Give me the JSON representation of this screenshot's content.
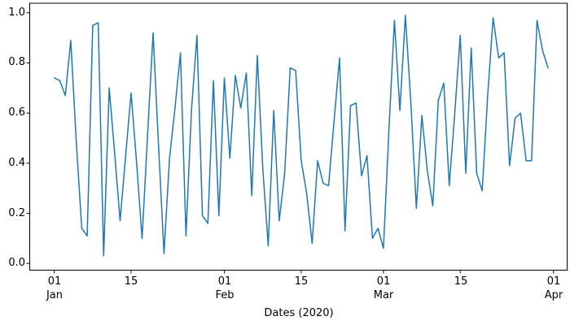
{
  "chart_data": {
    "type": "line",
    "title": "",
    "xlabel": "Dates (2020)",
    "ylabel": "",
    "legend": null,
    "grid": false,
    "line_color": "#1f77b4",
    "background_color": "#ffffff",
    "x_start": "2020-01-01",
    "x_end": "2020-03-31",
    "frequency": "daily",
    "n_points": 91,
    "ylim": [
      -0.03,
      1.04
    ],
    "y_tick_labels": [
      "1.0",
      "0.8",
      "0.6",
      "0.4",
      "0.2",
      "0.0"
    ],
    "x_tick_labels": [
      "01",
      "15",
      "01",
      "15",
      "01",
      "15",
      "01"
    ],
    "x_month_labels": [
      "Jan",
      "Feb",
      "Mar",
      "Apr"
    ],
    "values": [
      0.74,
      0.73,
      0.67,
      0.89,
      0.49,
      0.14,
      0.11,
      0.95,
      0.96,
      0.03,
      0.7,
      0.44,
      0.17,
      0.43,
      0.68,
      0.4,
      0.1,
      0.51,
      0.92,
      0.47,
      0.04,
      0.42,
      0.62,
      0.84,
      0.11,
      0.61,
      0.91,
      0.19,
      0.16,
      0.73,
      0.19,
      0.74,
      0.42,
      0.75,
      0.62,
      0.76,
      0.27,
      0.83,
      0.38,
      0.07,
      0.61,
      0.17,
      0.36,
      0.78,
      0.77,
      0.41,
      0.28,
      0.08,
      0.41,
      0.32,
      0.31,
      0.57,
      0.82,
      0.13,
      0.63,
      0.64,
      0.35,
      0.43,
      0.1,
      0.14,
      0.06,
      0.53,
      0.97,
      0.61,
      0.99,
      0.64,
      0.22,
      0.59,
      0.37,
      0.23,
      0.65,
      0.72,
      0.31,
      0.6,
      0.91,
      0.36,
      0.86,
      0.36,
      0.29,
      0.67,
      0.98,
      0.82,
      0.84,
      0.39,
      0.58,
      0.6,
      0.41,
      0.41,
      0.97,
      0.85,
      0.78
    ]
  }
}
